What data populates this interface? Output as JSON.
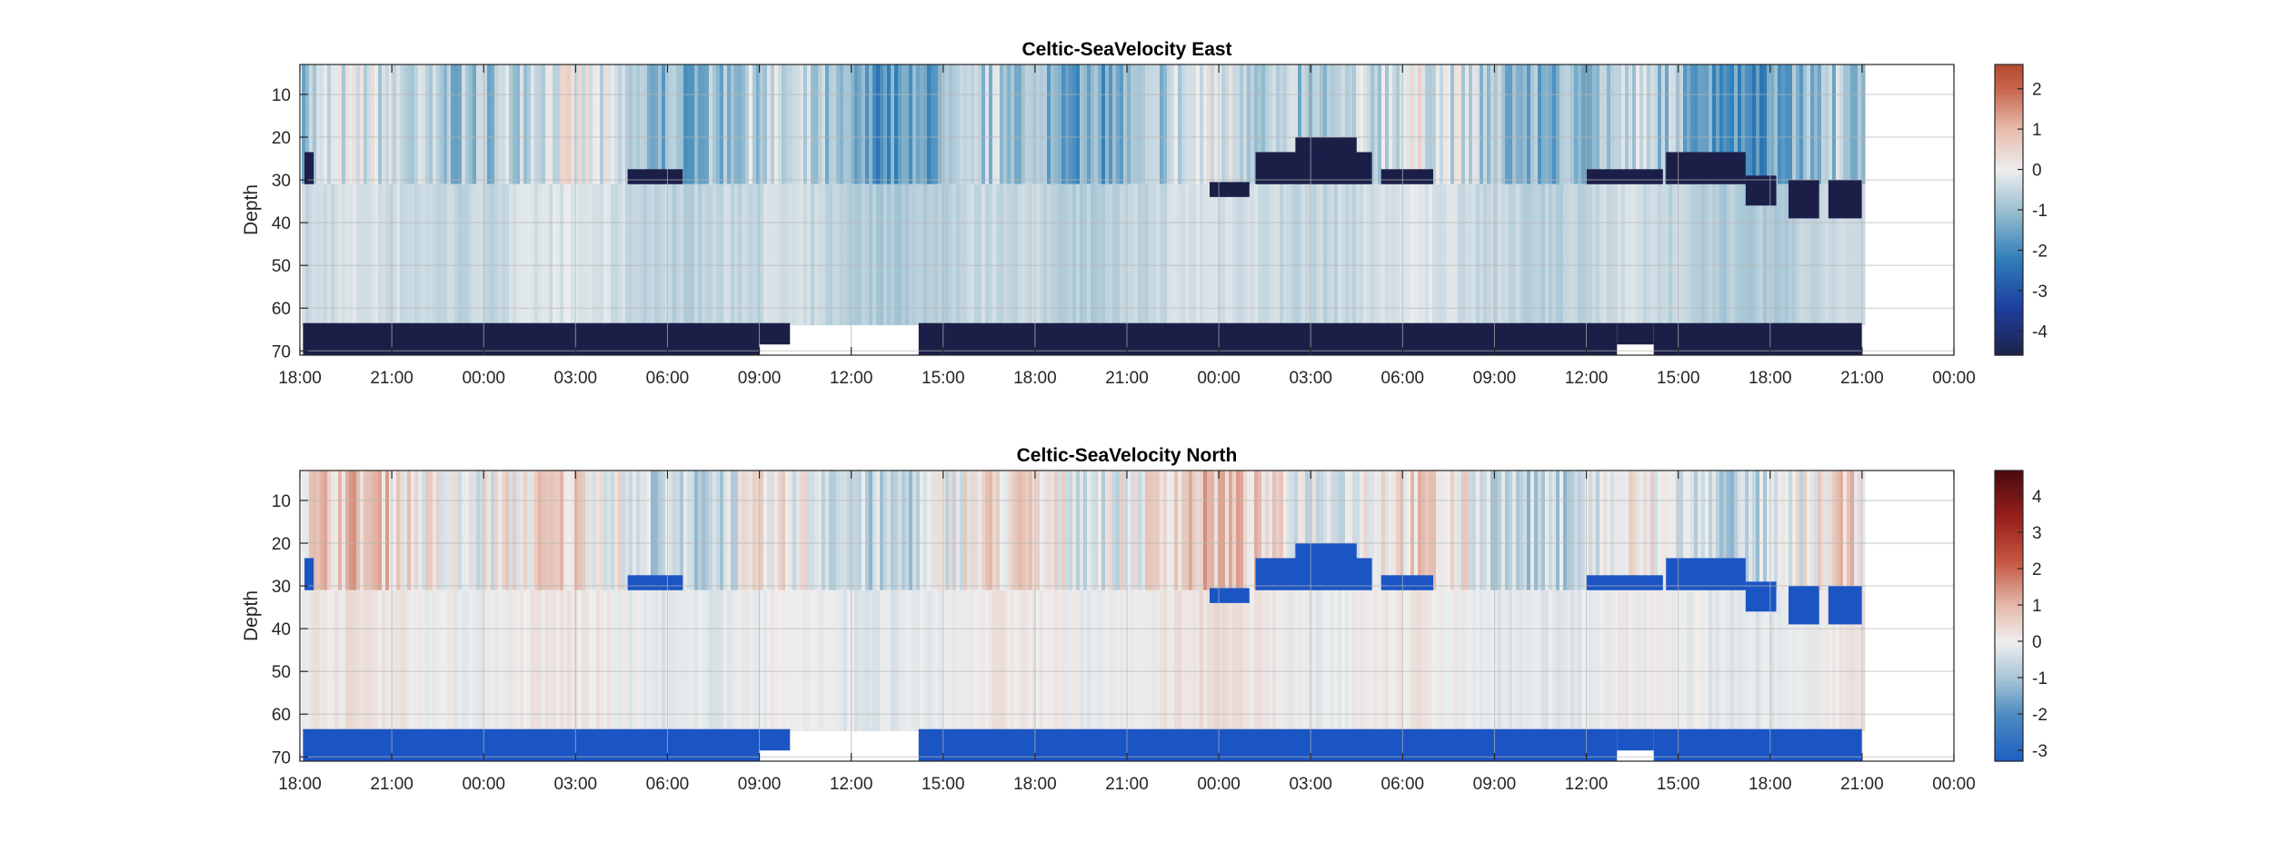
{
  "chart_data": [
    {
      "type": "heatmap",
      "title": "Celtic-SeaVelocity East",
      "ylabel": "Depth",
      "xlabel": "",
      "y_ticks": [
        "10",
        "20",
        "30",
        "40",
        "50",
        "60",
        "70"
      ],
      "x_ticks": [
        "18:00",
        "21:00",
        "00:00",
        "03:00",
        "06:00",
        "09:00",
        "12:00",
        "15:00",
        "18:00",
        "21:00",
        "00:00",
        "03:00",
        "06:00",
        "09:00",
        "12:00",
        "15:00",
        "18:00",
        "21:00",
        "00:00"
      ],
      "x_range_hours": [
        0,
        54
      ],
      "data_end_hours": 51,
      "ylim": [
        3,
        71
      ],
      "y_reversed": true,
      "grid": true,
      "colorbar": {
        "ticks": [
          "2",
          "1",
          "0",
          "-1",
          "-2",
          "-3",
          "-4"
        ],
        "range": [
          -4.6,
          2.6
        ],
        "stops": [
          {
            "v": -4.6,
            "c": "#1d2349"
          },
          {
            "v": -3.4,
            "c": "#1e3fa0"
          },
          {
            "v": -2.2,
            "c": "#2f7fb8"
          },
          {
            "v": -1.0,
            "c": "#9bbfd1"
          },
          {
            "v": 0.0,
            "c": "#eeeeee"
          },
          {
            "v": 1.0,
            "c": "#e7bcac"
          },
          {
            "v": 2.0,
            "c": "#c8664d"
          },
          {
            "v": 2.6,
            "c": "#b34a32"
          }
        ]
      },
      "mask_color": "#1b1f48",
      "base_tone": -0.6
    },
    {
      "type": "heatmap",
      "title": "Celtic-SeaVelocity North",
      "ylabel": "Depth",
      "xlabel": "",
      "y_ticks": [
        "10",
        "20",
        "30",
        "40",
        "50",
        "60",
        "70"
      ],
      "x_ticks": [
        "18:00",
        "21:00",
        "00:00",
        "03:00",
        "06:00",
        "09:00",
        "12:00",
        "15:00",
        "18:00",
        "21:00",
        "00:00",
        "03:00",
        "06:00",
        "09:00",
        "12:00",
        "15:00",
        "18:00",
        "21:00",
        "00:00"
      ],
      "x_range_hours": [
        0,
        54
      ],
      "data_end_hours": 51,
      "ylim": [
        3,
        71
      ],
      "y_reversed": true,
      "grid": true,
      "colorbar": {
        "ticks": [
          "4",
          "3",
          "2",
          "1",
          "0",
          "-1",
          "-2",
          "-3"
        ],
        "range": [
          -3.3,
          4.7
        ],
        "stops": [
          {
            "v": -3.3,
            "c": "#1d5ec2"
          },
          {
            "v": -2.0,
            "c": "#4d8cc1"
          },
          {
            "v": -1.0,
            "c": "#a9c6d6"
          },
          {
            "v": 0.0,
            "c": "#eeeeee"
          },
          {
            "v": 1.0,
            "c": "#e4b9aa"
          },
          {
            "v": 2.2,
            "c": "#c55641"
          },
          {
            "v": 3.4,
            "c": "#99201c"
          },
          {
            "v": 4.7,
            "c": "#4a0a10"
          }
        ]
      },
      "mask_color": "#1b55c4",
      "base_tone": 0.0
    }
  ]
}
